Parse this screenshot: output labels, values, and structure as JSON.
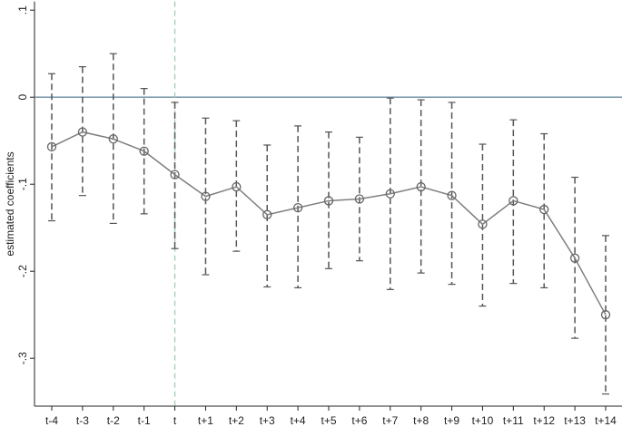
{
  "chart_data": {
    "type": "errorbar-line",
    "y_label": "estimated coefficients",
    "categories": [
      "t-4",
      "t-3",
      "t-2",
      "t-1",
      "t",
      "t+1",
      "t+2",
      "t+3",
      "t+4",
      "t+5",
      "t+6",
      "t+7",
      "t+8",
      "t+9",
      "t+10",
      "t+11",
      "t+12",
      "t+13",
      "t+14"
    ],
    "series": [
      {
        "color": "#7f7f7f",
        "bar_color": "#555555",
        "values": [
          -0.057,
          -0.04,
          -0.048,
          -0.062,
          -0.089,
          -0.114,
          -0.103,
          -0.135,
          -0.127,
          -0.119,
          -0.117,
          -0.111,
          -0.103,
          -0.113,
          -0.146,
          -0.119,
          -0.129,
          -0.185,
          -0.25
        ],
        "upper": [
          0.027,
          0.035,
          0.05,
          0.01,
          -0.006,
          -0.024,
          -0.027,
          -0.055,
          -0.033,
          -0.04,
          -0.046,
          -0.001,
          -0.003,
          -0.006,
          -0.054,
          -0.026,
          -0.042,
          -0.092,
          -0.159
        ],
        "lower": [
          -0.142,
          -0.113,
          -0.145,
          -0.134,
          -0.174,
          -0.204,
          -0.177,
          -0.218,
          -0.219,
          -0.197,
          -0.188,
          -0.221,
          -0.202,
          -0.215,
          -0.24,
          -0.214,
          -0.219,
          -0.277,
          -0.341
        ]
      }
    ],
    "ylim": [
      -0.355,
      0.11
    ],
    "yticks": [
      {
        "value": 0.1,
        "label": ".1"
      },
      0,
      {
        "value": -0.1,
        "label": "-.1"
      },
      {
        "value": -0.2,
        "label": "-.2"
      },
      {
        "value": -0.3,
        "label": "-.3"
      }
    ],
    "hline": 0,
    "hline_color": "#6b8ca3",
    "vline_category": "t",
    "vline_color": "#a6cbb0"
  }
}
